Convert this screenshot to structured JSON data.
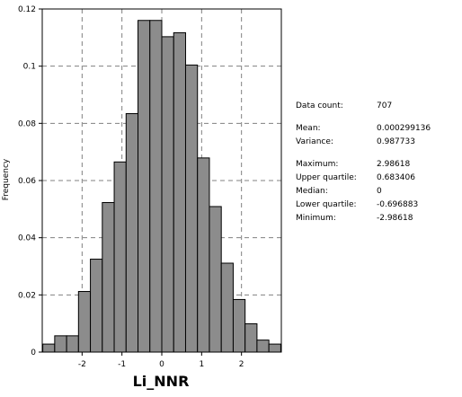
{
  "colors": {
    "bar_fill": "#8c8c8c",
    "bar_stroke": "#000000",
    "grid": "#808080",
    "axis": "#000000"
  },
  "chart_data": {
    "type": "bar",
    "title": "",
    "xlabel": "Li_NNR",
    "ylabel": "Frequency",
    "xlim": [
      -3.0,
      3.0
    ],
    "ylim": [
      0,
      0.12
    ],
    "xticks": [
      -2,
      -1,
      0,
      1,
      2
    ],
    "xtick_labels": [
      "-2",
      "-1",
      "0",
      "1",
      "2"
    ],
    "yticks": [
      0,
      0.02,
      0.04,
      0.06,
      0.08,
      0.1,
      0.12
    ],
    "ytick_labels": [
      "0",
      "0.02",
      "0.04",
      "0.06",
      "0.08",
      "0.1",
      "0.12"
    ],
    "grid": true,
    "bin_edges": [
      -2.98618,
      -2.68756,
      -2.38893,
      -2.09031,
      -1.79169,
      -1.49307,
      -1.19444,
      -0.89582,
      -0.5972,
      -0.29858,
      5e-05,
      0.29867,
      0.59729,
      0.89591,
      1.19453,
      1.49316,
      1.79178,
      2.0904,
      2.38902,
      2.68764,
      2.98627
    ],
    "values": [
      0.0028,
      0.0057,
      0.0057,
      0.0212,
      0.0325,
      0.0523,
      0.0665,
      0.0834,
      0.116,
      0.116,
      0.1103,
      0.1117,
      0.1004,
      0.0679,
      0.0509,
      0.0311,
      0.0184,
      0.0099,
      0.0042,
      0.0028
    ]
  },
  "stats": [
    {
      "label": "Data count:",
      "value": "707"
    },
    {
      "label": "Mean:",
      "value": "0.000299136"
    },
    {
      "label": "Variance:",
      "value": "0.987733"
    },
    {
      "label": "Maximum:",
      "value": "2.98618"
    },
    {
      "label": "Upper quartile:",
      "value": "0.683406"
    },
    {
      "label": "Median:",
      "value": "0"
    },
    {
      "label": "Lower quartile:",
      "value": "-0.696883"
    },
    {
      "label": "Minimum:",
      "value": "-2.98618"
    }
  ]
}
